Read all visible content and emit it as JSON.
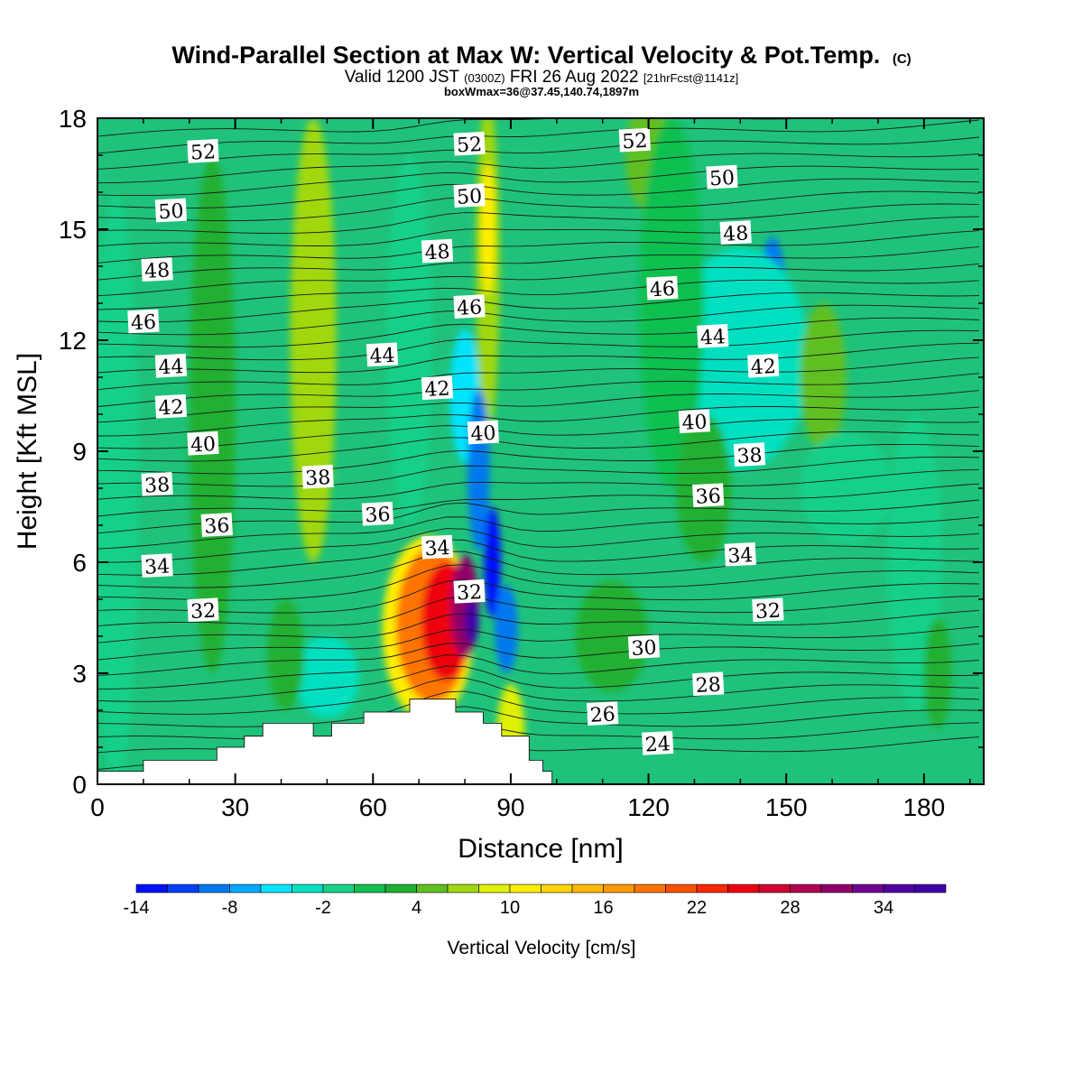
{
  "header": {
    "title": "Wind-Parallel Section at Max W: Vertical Velocity & Pot.Temp.",
    "copyright": "(C)",
    "valid_prefix": "Valid 1200 JST",
    "valid_utc": "(0300Z)",
    "valid_date": "FRI 26 Aug 2022",
    "forecast": "[21hrFcst@1141z]",
    "boxinfo": "boxWmax=36@37.45,140.74,1897m"
  },
  "chart_data": {
    "type": "heatmap",
    "xlabel": "Distance [nm]",
    "ylabel": "Height [Kft MSL]",
    "xlim": [
      0,
      193
    ],
    "ylim": [
      0,
      18
    ],
    "xticks": [
      0,
      30,
      60,
      90,
      120,
      150,
      180
    ],
    "yticks": [
      0,
      3,
      6,
      9,
      12,
      15,
      18
    ],
    "grid": false,
    "background_color": "#1fc27a",
    "colorbar": {
      "label": "Vertical Velocity [cm/s]",
      "min": -14,
      "max": 38,
      "step": 2,
      "tick_labels": [
        "-14",
        "-8",
        "-2",
        "4",
        "10",
        "16",
        "22",
        "28",
        "34"
      ],
      "colors": [
        "#0010ff",
        "#0040ff",
        "#0078f0",
        "#00aaff",
        "#00e4ff",
        "#00e0c0",
        "#18d088",
        "#10c050",
        "#20b030",
        "#60c020",
        "#a0d810",
        "#e0f000",
        "#ffee00",
        "#ffd400",
        "#ffb800",
        "#ff9800",
        "#ff7400",
        "#ff5000",
        "#ff2800",
        "#ee0010",
        "#d00030",
        "#b00050",
        "#900068",
        "#700090",
        "#5000a0",
        "#4000a8"
      ]
    },
    "velocity_field": [
      {
        "x": 3,
        "y": 3.2,
        "rx": 2.5,
        "ry": 1.5,
        "value": -9
      },
      {
        "x": 4,
        "y": 8,
        "rx": 5,
        "ry": 8,
        "value": -2
      },
      {
        "x": 25,
        "y": 10,
        "rx": 5,
        "ry": 7,
        "value": 2
      },
      {
        "x": 47,
        "y": 12,
        "rx": 5,
        "ry": 6,
        "value": 6
      },
      {
        "x": 68,
        "y": 12,
        "rx": 5,
        "ry": 5,
        "value": -2
      },
      {
        "x": 50,
        "y": 2.9,
        "rx": 7,
        "ry": 1.1,
        "value": -4
      },
      {
        "x": 41,
        "y": 3.5,
        "rx": 4,
        "ry": 1.5,
        "value": 3
      },
      {
        "x": 85,
        "y": 14,
        "rx": 2.6,
        "ry": 4.5,
        "value": 6
      },
      {
        "x": 85,
        "y": 15,
        "rx": 1.6,
        "ry": 1.8,
        "value": 10
      },
      {
        "x": 80,
        "y": 10.5,
        "rx": 3.2,
        "ry": 1.8,
        "value": -6
      },
      {
        "x": 83,
        "y": 8.5,
        "rx": 2.4,
        "ry": 2.2,
        "value": -9
      },
      {
        "x": 86,
        "y": 6,
        "rx": 1.8,
        "ry": 1.5,
        "value": -13
      },
      {
        "x": 89,
        "y": 4.2,
        "rx": 2.5,
        "ry": 1.2,
        "value": -10
      },
      {
        "x": 72,
        "y": 4.2,
        "rx": 10,
        "ry": 2.5,
        "value": 10
      },
      {
        "x": 73,
        "y": 4.3,
        "rx": 8,
        "ry": 2.1,
        "value": 18
      },
      {
        "x": 76,
        "y": 4.4,
        "rx": 5.5,
        "ry": 1.6,
        "value": 24
      },
      {
        "x": 80,
        "y": 4.8,
        "rx": 3,
        "ry": 1.4,
        "value": 30
      },
      {
        "x": 81.5,
        "y": 4.4,
        "rx": 1.5,
        "ry": 0.6,
        "value": 36
      },
      {
        "x": 90,
        "y": 1.4,
        "rx": 3,
        "ry": 1.3,
        "value": 8
      },
      {
        "x": 147,
        "y": 13,
        "rx": 3,
        "ry": 1.8,
        "value": -9
      },
      {
        "x": 140,
        "y": 11.5,
        "rx": 15,
        "ry": 3,
        "value": -4
      },
      {
        "x": 158,
        "y": 11,
        "rx": 5,
        "ry": 2,
        "value": 4
      },
      {
        "x": 163,
        "y": 8,
        "rx": 10,
        "ry": 1.5,
        "value": -2
      },
      {
        "x": 178,
        "y": 6,
        "rx": 6,
        "ry": 4,
        "value": -2
      },
      {
        "x": 183,
        "y": 3,
        "rx": 3,
        "ry": 1.5,
        "value": 3
      },
      {
        "x": 120,
        "y": 17,
        "rx": 5,
        "ry": 1.5,
        "value": 4
      },
      {
        "x": 112,
        "y": 4,
        "rx": 8,
        "ry": 1.5,
        "value": 2
      },
      {
        "x": 125,
        "y": 13,
        "rx": 7,
        "ry": 5,
        "value": 0
      },
      {
        "x": 132,
        "y": 8,
        "rx": 6,
        "ry": 2,
        "value": 3
      }
    ],
    "terrain": [
      [
        0,
        0.35
      ],
      [
        10,
        0.35
      ],
      [
        10,
        0.65
      ],
      [
        26,
        0.65
      ],
      [
        26,
        1.0
      ],
      [
        32,
        1.0
      ],
      [
        32,
        1.3
      ],
      [
        36,
        1.3
      ],
      [
        36,
        1.65
      ],
      [
        47,
        1.65
      ],
      [
        47,
        1.3
      ],
      [
        51,
        1.3
      ],
      [
        51,
        1.65
      ],
      [
        58,
        1.65
      ],
      [
        58,
        1.95
      ],
      [
        68,
        1.95
      ],
      [
        68,
        2.3
      ],
      [
        78,
        2.3
      ],
      [
        78,
        1.95
      ],
      [
        84,
        1.95
      ],
      [
        84,
        1.65
      ],
      [
        88,
        1.65
      ],
      [
        88,
        1.3
      ],
      [
        94,
        1.3
      ],
      [
        94,
        0.65
      ],
      [
        97,
        0.65
      ],
      [
        97,
        0.35
      ],
      [
        99,
        0.35
      ],
      [
        99,
        0
      ],
      [
        0,
        0
      ]
    ],
    "theta_labels": [
      {
        "value": "52",
        "x": 23,
        "y": 17.1
      },
      {
        "value": "52",
        "x": 81,
        "y": 17.3
      },
      {
        "value": "52",
        "x": 117,
        "y": 17.4
      },
      {
        "value": "50",
        "x": 16,
        "y": 15.5
      },
      {
        "value": "50",
        "x": 81,
        "y": 15.9
      },
      {
        "value": "50",
        "x": 136,
        "y": 16.4
      },
      {
        "value": "48",
        "x": 13,
        "y": 13.9
      },
      {
        "value": "48",
        "x": 74,
        "y": 14.4
      },
      {
        "value": "48",
        "x": 139,
        "y": 14.9
      },
      {
        "value": "46",
        "x": 10,
        "y": 12.5
      },
      {
        "value": "46",
        "x": 81,
        "y": 12.9
      },
      {
        "value": "46",
        "x": 123,
        "y": 13.4
      },
      {
        "value": "44",
        "x": 16,
        "y": 11.3
      },
      {
        "value": "44",
        "x": 62,
        "y": 11.6
      },
      {
        "value": "44",
        "x": 134,
        "y": 12.1
      },
      {
        "value": "42",
        "x": 16,
        "y": 10.2
      },
      {
        "value": "42",
        "x": 74,
        "y": 10.7
      },
      {
        "value": "42",
        "x": 145,
        "y": 11.3
      },
      {
        "value": "40",
        "x": 23,
        "y": 9.2
      },
      {
        "value": "40",
        "x": 84,
        "y": 9.5
      },
      {
        "value": "40",
        "x": 130,
        "y": 9.8
      },
      {
        "value": "38",
        "x": 13,
        "y": 8.1
      },
      {
        "value": "38",
        "x": 48,
        "y": 8.3
      },
      {
        "value": "38",
        "x": 142,
        "y": 8.9
      },
      {
        "value": "36",
        "x": 26,
        "y": 7.0
      },
      {
        "value": "36",
        "x": 61,
        "y": 7.3
      },
      {
        "value": "36",
        "x": 133,
        "y": 7.8
      },
      {
        "value": "34",
        "x": 13,
        "y": 5.9
      },
      {
        "value": "34",
        "x": 74,
        "y": 6.4
      },
      {
        "value": "34",
        "x": 140,
        "y": 6.2
      },
      {
        "value": "32",
        "x": 23,
        "y": 4.7
      },
      {
        "value": "32",
        "x": 81,
        "y": 5.2
      },
      {
        "value": "32",
        "x": 146,
        "y": 4.7
      },
      {
        "value": "30",
        "x": 119,
        "y": 3.7
      },
      {
        "value": "28",
        "x": 133,
        "y": 2.7
      },
      {
        "value": "26",
        "x": 110,
        "y": 1.9
      },
      {
        "value": "24",
        "x": 122,
        "y": 1.1
      }
    ]
  }
}
